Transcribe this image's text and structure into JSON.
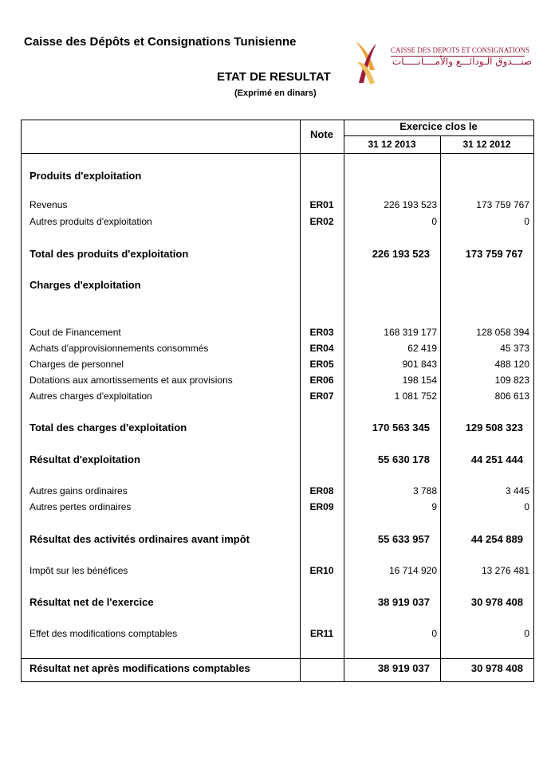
{
  "header": {
    "company": "Caisse des Dépôts et Consignations Tunisienne",
    "title": "ETAT DE RESULTAT",
    "subtitle": "(Exprimé en dinars)",
    "logo": {
      "latin": "CAISSE DES DEPOTS ET CONSIGNATIONS",
      "arabic": "صنـــدوق الـودائـــع والأمــــانـــــات"
    }
  },
  "table": {
    "columns": {
      "note": "Note",
      "period": "Exercice clos le",
      "year1": "31 12 2013",
      "year2": "31 12 2012"
    },
    "rows": [
      {
        "label": "Produits d'exploitation"
      },
      {
        "label": "Revenus",
        "note": "ER01",
        "year1": "226 193 523",
        "year2": "173 759 767"
      },
      {
        "label": "Autres produits d'exploitation",
        "note": "ER02",
        "year1": "0",
        "year2": "0"
      },
      {
        "label": "Total des produits d'exploitation",
        "year1": "226 193 523",
        "year2": "173 759 767"
      },
      {
        "label": "Charges d'exploitation"
      },
      {
        "label": "Cout de Financement",
        "note": "ER03",
        "year1": "168 319 177",
        "year2": "128 058 394"
      },
      {
        "label": "Achats d'approvisionnements consommés",
        "note": "ER04",
        "year1": "62 419",
        "year2": "45 373"
      },
      {
        "label": "Charges de personnel",
        "note": "ER05",
        "year1": "901 843",
        "year2": "488 120"
      },
      {
        "label": "Dotations aux amortissements et aux  provisions",
        "note": "ER06",
        "year1": "198 154",
        "year2": "109 823"
      },
      {
        "label": "Autres charges d'exploitation",
        "note": "ER07",
        "year1": "1 081 752",
        "year2": "806 613"
      },
      {
        "label": "Total des charges d'exploitation",
        "year1": "170 563 345",
        "year2": "129 508 323"
      },
      {
        "label": "Résultat d'exploitation",
        "year1": "55 630 178",
        "year2": "44 251 444"
      },
      {
        "label": "Autres gains ordinaires",
        "note": "ER08",
        "year1": "3 788",
        "year2": "3 445"
      },
      {
        "label": "Autres pertes ordinaires",
        "note": "ER09",
        "year1": "9",
        "year2": "0"
      },
      {
        "label": "Résultat des activités ordinaires avant impôt",
        "year1": "55 633 957",
        "year2": "44 254 889"
      },
      {
        "label": "Impôt sur les bénéfices",
        "note": "ER10",
        "year1": "16 714 920",
        "year2": "13 276 481"
      },
      {
        "label": "Résultat net de l'exercice",
        "year1": "38 919 037",
        "year2": "30 978 408"
      },
      {
        "label": "Effet des modifications comptables",
        "note": "ER11",
        "year1": "0",
        "year2": "0"
      },
      {
        "label": "Résultat net après modifications comptables",
        "year1": "38 919 037",
        "year2": "30 978 408"
      }
    ]
  }
}
